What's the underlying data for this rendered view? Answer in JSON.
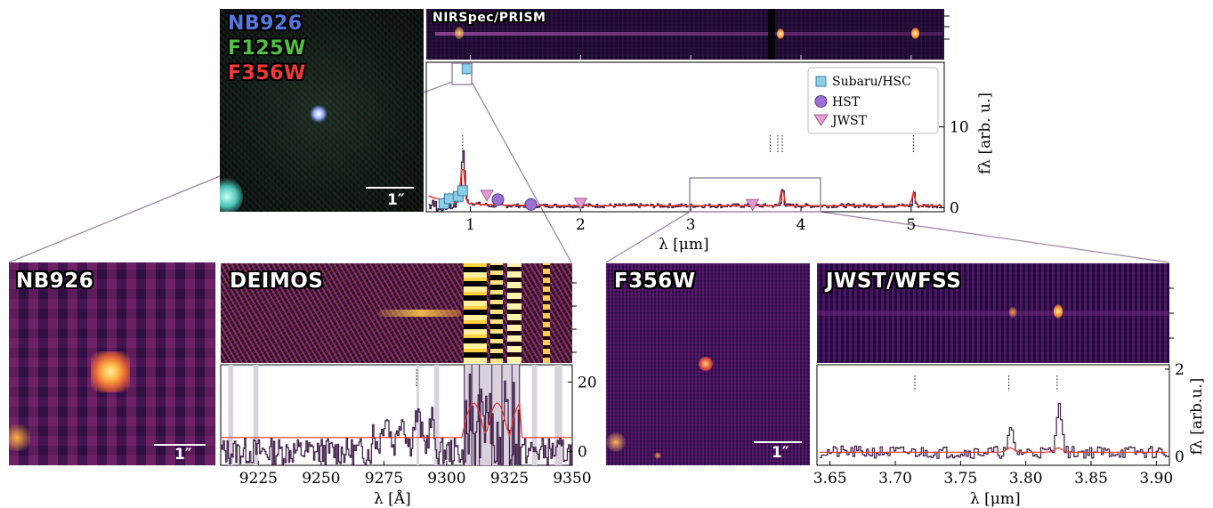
{
  "panels": {
    "rgb": {
      "labels": [
        {
          "text": "NB926",
          "color": "#3d5cc9"
        },
        {
          "text": "F125W",
          "color": "#3fae35"
        },
        {
          "text": "F356W",
          "color": "#e0282c"
        }
      ],
      "scalebar": "1″"
    },
    "prism": {
      "label": "NIRSpec/PRISM"
    },
    "nb926": {
      "label": "NB926",
      "scalebar": "1″"
    },
    "deimos": {
      "label": "DEIMOS"
    },
    "f356w": {
      "label": "F356W",
      "scalebar": "1″"
    },
    "wfss": {
      "label": "JWST/WFSS"
    }
  },
  "colors": {
    "spectrum": "#3b1a45",
    "model": "#e8352a",
    "subaru": "#8ecfe6",
    "hst": "#9b6fd1",
    "jwst": "#e39bd6",
    "connector": "#9b8aa8",
    "mask": "#d9d2de"
  },
  "chart_data": [
    {
      "type": "line",
      "name": "sed",
      "xlabel": "λ [μm]",
      "ylabel": "fλ [arb. u.]",
      "xlim": [
        0.6,
        5.3
      ],
      "ylim": [
        -0.5,
        18
      ],
      "x_ticks": [
        "1",
        "2",
        "3",
        "4",
        "5"
      ],
      "y_ticks": [
        "0",
        "10"
      ],
      "legend": {
        "position": "top-right",
        "entries": [
          "Subaru/HSC",
          "HST",
          "JWST"
        ]
      },
      "photometry": {
        "subaru": {
          "x": [
            0.76,
            0.81,
            0.89,
            0.93,
            0.97
          ],
          "y": [
            0.5,
            1.1,
            1.4,
            2.1,
            17.2
          ]
        },
        "hst": {
          "x": [
            1.25,
            1.55
          ],
          "y": [
            1.0,
            0.4
          ]
        },
        "jwst": {
          "x": [
            1.15,
            2.0,
            3.56
          ],
          "y": [
            1.5,
            0.5,
            0.35
          ]
        }
      },
      "line_markers_x": [
        0.93,
        3.72,
        3.79,
        3.83,
        5.02
      ],
      "spectrum_peaks": [
        {
          "x": 0.93,
          "y": 6.2
        },
        {
          "x": 3.83,
          "y": 2.6
        },
        {
          "x": 5.02,
          "y": 1.9
        }
      ]
    },
    {
      "type": "line",
      "name": "deimos",
      "xlabel": "λ [Å]",
      "xlim": [
        9210,
        9350
      ],
      "ylim": [
        -4,
        25
      ],
      "x_ticks": [
        "9225",
        "9250",
        "9275",
        "9300",
        "9325",
        "9350"
      ],
      "y_ticks": [
        "0",
        "20"
      ],
      "line_marker_x": 9288,
      "masked_ranges": [
        [
          9213,
          9215
        ],
        [
          9223,
          9225
        ],
        [
          9288,
          9289
        ],
        [
          9295,
          9297
        ],
        [
          9307,
          9329
        ],
        [
          9334,
          9336
        ],
        [
          9343,
          9346
        ]
      ]
    },
    {
      "type": "line",
      "name": "wfss",
      "xlabel": "λ [μm]",
      "ylabel": "fλ [arb.u.]",
      "xlim": [
        3.64,
        3.91
      ],
      "ylim": [
        -0.2,
        2.1
      ],
      "x_ticks": [
        "3.65",
        "3.70",
        "3.75",
        "3.80",
        "3.85",
        "3.90"
      ],
      "y_ticks": [
        "0",
        "2"
      ],
      "line_markers_x": [
        3.715,
        3.787,
        3.824
      ],
      "peaks": [
        {
          "x": 3.788,
          "y": 0.5
        },
        {
          "x": 3.825,
          "y": 1.25
        }
      ]
    }
  ]
}
